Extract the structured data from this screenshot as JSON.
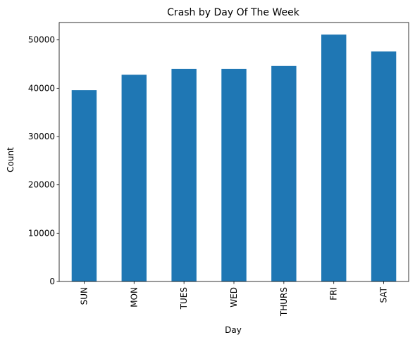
{
  "chart_data": {
    "type": "bar",
    "title": "Crash by Day Of The Week",
    "xlabel": "Day",
    "ylabel": "Count",
    "categories": [
      "SUN",
      "MON",
      "TUES",
      "WED",
      "THURS",
      "FRI",
      "SAT"
    ],
    "values": [
      39600,
      42800,
      44000,
      44000,
      44600,
      51100,
      47600
    ],
    "ylim": [
      0,
      53600
    ],
    "yticks": [
      0,
      10000,
      20000,
      30000,
      40000,
      50000
    ],
    "ytick_labels": [
      "0",
      "10000",
      "20000",
      "30000",
      "40000",
      "50000"
    ],
    "grid": false,
    "legend": "none",
    "bar_color": "#1f77b4"
  }
}
